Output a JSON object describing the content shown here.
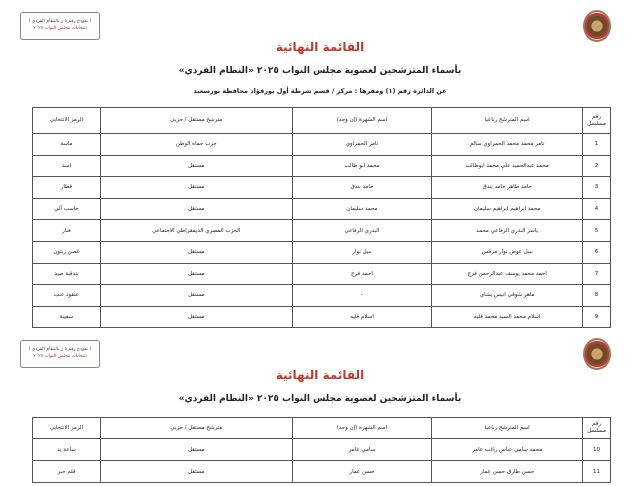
{
  "stamp": {
    "line1": "( نموذج رقم ٥ ر بالنظام الفردي )",
    "line2": "انتخابات مجلس النواب ٢٠٢٥"
  },
  "title": "القائمة النهائية",
  "subtitle": "بأسماء المترشحين لعضوية مجلس النواب ٢٠٢٥ «النظام الفردي»",
  "info": "عن الدائرة رقم (١)   ومقرها : مركز / قسم شرطة أول بورفؤاد   محافظة بورسعيد",
  "headers": [
    "رقم مسلسل",
    "اسم المترشح رباعيا",
    "اسم الشهرة (إن وجد)",
    "مترشح مستقل / حزبي",
    "الرمز الانتخابي"
  ],
  "rows": [
    [
      "1",
      "تامر محمد محمد الحمزاوي سالم",
      "تامر الحمزاوي",
      "حزب حماة الوطن",
      "ماسة"
    ],
    [
      "2",
      "محمد عبدالحميد علي محمد ابوطالب",
      "محمد ابو طالب",
      "مستقل",
      "اسد"
    ],
    [
      "3",
      "حامد طاهر حامد بندق",
      "حامد بندق",
      "مستقل",
      "قطار"
    ],
    [
      "4",
      "محمد ابراهيم ابراهيم سليمان",
      "محمد سليمان",
      "مستقل",
      "حاسب آلي"
    ],
    [
      "5",
      "ياسر البدري الرفاعي محمد",
      "البدري الرفاعي",
      "الحزب المصري الديمقراطي الاجتماعي",
      "فنار"
    ],
    [
      "6",
      "نبيل عوض نوار مرقس",
      "نبيل نوار",
      "مستقل",
      "غصن زيتون"
    ],
    [
      "7",
      "احمد محمد يوسف عبدالرحمن فرج",
      "احمد فرج",
      "مستقل",
      "بندقية صيد"
    ],
    [
      "8",
      "ماهر شوقي انيس بشاي",
      "-",
      "مستقل",
      "عنقود عنب"
    ],
    [
      "9",
      "اسلام محمد السيد محمد قليه",
      "اسلام قليه",
      "مستقل",
      "سفينة"
    ],
    [
      "10",
      "محمد سامي عباس راغب عامر",
      "سامي عامر",
      "مستقل",
      "ساعة يد"
    ],
    [
      "11",
      "حسن طارق حسن عمار",
      "حسن عمار",
      "مستقل",
      "قلم حبر"
    ]
  ]
}
